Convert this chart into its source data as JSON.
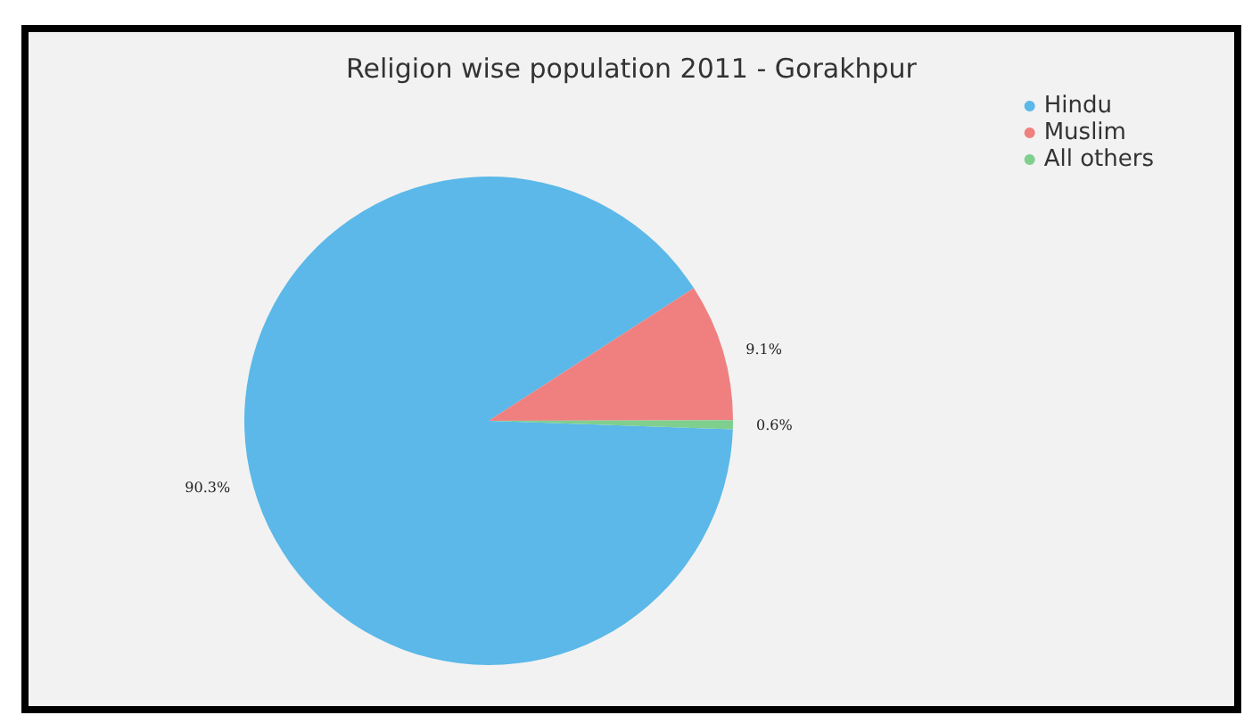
{
  "chart_data": {
    "type": "pie",
    "title": "Religion wise population 2011 - Gorakhpur",
    "categories": [
      "Hindu",
      "Muslim",
      "All others"
    ],
    "values": [
      90.3,
      9.1,
      0.6
    ],
    "value_labels": [
      "90.3%",
      "9.1%",
      "0.6%"
    ],
    "colors": [
      "#5bb8e8",
      "#f08080",
      "#7fcf8f"
    ],
    "legend": "top right"
  }
}
